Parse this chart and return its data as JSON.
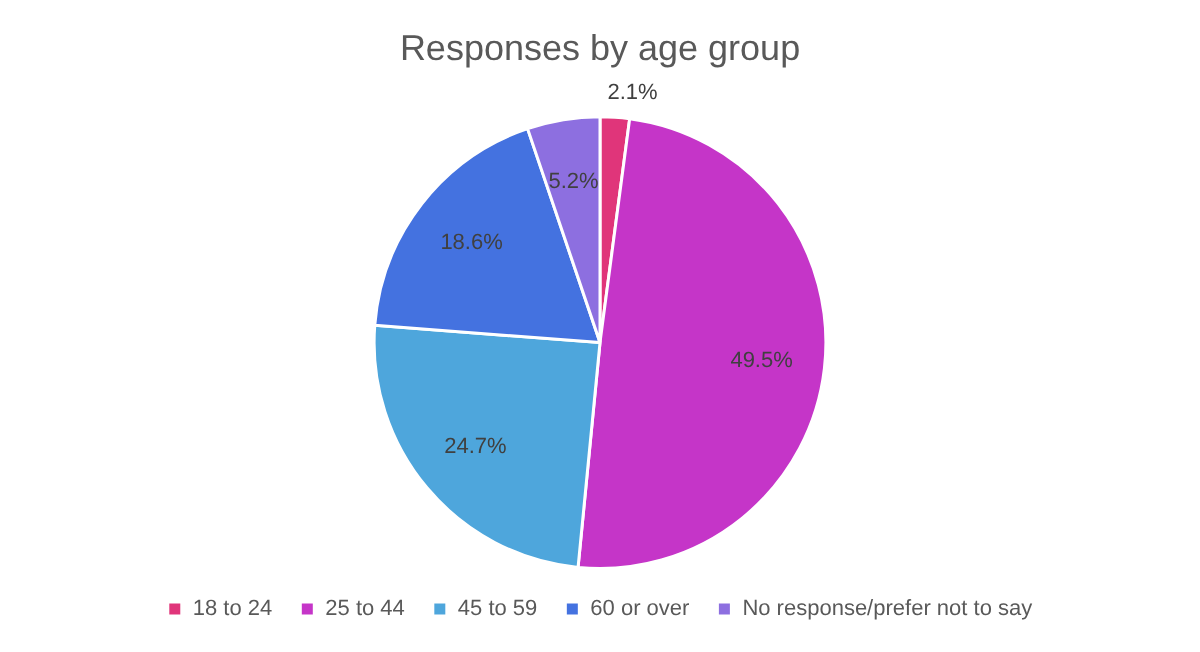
{
  "chart_data": {
    "type": "pie",
    "title": "Responses by age group",
    "categories": [
      "18 to 24",
      "25 to 44",
      "45 to 59",
      "60 or over",
      "No response/prefer not to say"
    ],
    "values": [
      2.1,
      49.5,
      24.7,
      18.6,
      5.2
    ],
    "colors": [
      "#e0357a",
      "#c535c8",
      "#4ea6dc",
      "#4472e0",
      "#8d6fe0"
    ],
    "value_labels": [
      "2.1%",
      "49.5%",
      "24.7%",
      "18.6%",
      "5.2%"
    ],
    "legend": "bottom"
  }
}
